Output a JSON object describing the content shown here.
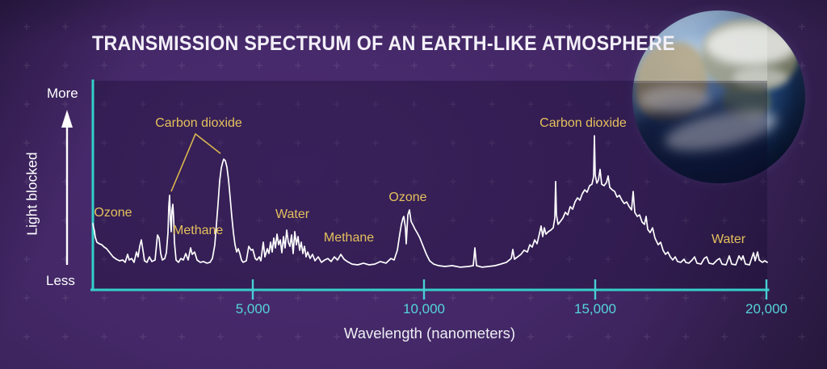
{
  "page": {
    "title": "TRANSMISSION SPECTRUM OF AN EARTH-LIKE ATMOSPHERE"
  },
  "colors": {
    "background_purple": "#432766",
    "plot_shade": "rgba(13,7,36,0.30)",
    "axis_teal": "#35cfc9",
    "tick_label_teal": "#55d4da",
    "annotation_gold": "#e5c05c",
    "curve_white": "#ffffff"
  },
  "chart_data": {
    "type": "line",
    "title": "TRANSMISSION SPECTRUM OF AN EARTH-LIKE ATMOSPHERE",
    "xlabel": "Wavelength (nanometers)",
    "ylabel": "Light blocked",
    "grid": false,
    "legend": "none",
    "y_axis": {
      "axis_label": "Light blocked",
      "top_label": "More",
      "bottom_label": "Less",
      "scale": "relative 0=Less 1=More"
    },
    "x_axis": {
      "unit": "nanometers",
      "range": [
        330,
        20020
      ],
      "ticks": [
        {
          "value": 5000,
          "label": "5,000"
        },
        {
          "value": 10000,
          "label": "10,000"
        },
        {
          "value": 15000,
          "label": "15,000"
        },
        {
          "value": 20000,
          "label": "20,000"
        }
      ]
    },
    "annotations": [
      {
        "text": "Ozone",
        "wl": 920,
        "blocked": 0.364
      },
      {
        "text": "Carbon dioxide",
        "wl": 3420,
        "blocked": 0.822
      },
      {
        "text": "Methane",
        "wl": 3400,
        "blocked": 0.273
      },
      {
        "text": "Water",
        "wl": 6156,
        "blocked": 0.355
      },
      {
        "text": "Methane",
        "wl": 7807,
        "blocked": 0.236
      },
      {
        "text": "Ozone",
        "wl": 9528,
        "blocked": 0.442
      },
      {
        "text": "Carbon dioxide",
        "wl": 14646,
        "blocked": 0.822
      },
      {
        "text": "Water",
        "wl": 18892,
        "blocked": 0.227
      }
    ],
    "leader_lines": [
      {
        "points": [
          [
            2618,
            0.475
          ],
          [
            3325,
            0.769
          ],
          [
            4057,
            0.669
          ]
        ]
      }
    ],
    "series": [
      {
        "name": "Earth-like atmosphere transmission spectrum",
        "points": [
          [
            330,
            0.31
          ],
          [
            377,
            0.27
          ],
          [
            400,
            0.24
          ],
          [
            448,
            0.215
          ],
          [
            519,
            0.207
          ],
          [
            590,
            0.202
          ],
          [
            660,
            0.19
          ],
          [
            731,
            0.182
          ],
          [
            825,
            0.161
          ],
          [
            920,
            0.14
          ],
          [
            1014,
            0.128
          ],
          [
            1109,
            0.12
          ],
          [
            1203,
            0.124
          ],
          [
            1274,
            0.112
          ],
          [
            1344,
            0.153
          ],
          [
            1392,
            0.124
          ],
          [
            1462,
            0.132
          ],
          [
            1533,
            0.112
          ],
          [
            1604,
            0.165
          ],
          [
            1651,
            0.14
          ],
          [
            1698,
            0.194
          ],
          [
            1745,
            0.227
          ],
          [
            1792,
            0.174
          ],
          [
            1840,
            0.12
          ],
          [
            1911,
            0.112
          ],
          [
            1981,
            0.14
          ],
          [
            2052,
            0.116
          ],
          [
            2146,
            0.124
          ],
          [
            2217,
            0.252
          ],
          [
            2264,
            0.236
          ],
          [
            2311,
            0.157
          ],
          [
            2358,
            0.124
          ],
          [
            2429,
            0.132
          ],
          [
            2476,
            0.161
          ],
          [
            2524,
            0.264
          ],
          [
            2547,
            0.397
          ],
          [
            2571,
            0.455
          ],
          [
            2594,
            0.33
          ],
          [
            2618,
            0.269
          ],
          [
            2642,
            0.38
          ],
          [
            2665,
            0.409
          ],
          [
            2689,
            0.339
          ],
          [
            2712,
            0.215
          ],
          [
            2760,
            0.124
          ],
          [
            2830,
            0.112
          ],
          [
            2901,
            0.132
          ],
          [
            2972,
            0.124
          ],
          [
            3043,
            0.157
          ],
          [
            3113,
            0.124
          ],
          [
            3184,
            0.186
          ],
          [
            3231,
            0.153
          ],
          [
            3302,
            0.165
          ],
          [
            3373,
            0.124
          ],
          [
            3467,
            0.112
          ],
          [
            3562,
            0.116
          ],
          [
            3656,
            0.108
          ],
          [
            3750,
            0.112
          ],
          [
            3821,
            0.132
          ],
          [
            3892,
            0.202
          ],
          [
            3939,
            0.306
          ],
          [
            3986,
            0.413
          ],
          [
            4033,
            0.529
          ],
          [
            4080,
            0.595
          ],
          [
            4128,
            0.628
          ],
          [
            4151,
            0.64
          ],
          [
            4198,
            0.632
          ],
          [
            4246,
            0.599
          ],
          [
            4293,
            0.533
          ],
          [
            4340,
            0.442
          ],
          [
            4387,
            0.347
          ],
          [
            4434,
            0.264
          ],
          [
            4481,
            0.202
          ],
          [
            4529,
            0.165
          ],
          [
            4576,
            0.182
          ],
          [
            4623,
            0.157
          ],
          [
            4670,
            0.124
          ],
          [
            4717,
            0.112
          ],
          [
            4812,
            0.12
          ],
          [
            4882,
            0.194
          ],
          [
            4953,
            0.174
          ],
          [
            5000,
            0.178
          ],
          [
            5071,
            0.132
          ],
          [
            5118,
            0.124
          ],
          [
            5189,
            0.14
          ],
          [
            5236,
            0.12
          ],
          [
            5307,
            0.215
          ],
          [
            5354,
            0.14
          ],
          [
            5425,
            0.182
          ],
          [
            5472,
            0.157
          ],
          [
            5519,
            0.215
          ],
          [
            5566,
            0.165
          ],
          [
            5613,
            0.236
          ],
          [
            5660,
            0.186
          ],
          [
            5708,
            0.256
          ],
          [
            5755,
            0.202
          ],
          [
            5802,
            0.227
          ],
          [
            5849,
            0.161
          ],
          [
            5896,
            0.244
          ],
          [
            5943,
            0.186
          ],
          [
            5991,
            0.277
          ],
          [
            6038,
            0.215
          ],
          [
            6085,
            0.194
          ],
          [
            6132,
            0.252
          ],
          [
            6179,
            0.157
          ],
          [
            6226,
            0.269
          ],
          [
            6274,
            0.202
          ],
          [
            6321,
            0.244
          ],
          [
            6368,
            0.174
          ],
          [
            6415,
            0.215
          ],
          [
            6462,
            0.157
          ],
          [
            6509,
            0.194
          ],
          [
            6557,
            0.14
          ],
          [
            6604,
            0.165
          ],
          [
            6675,
            0.132
          ],
          [
            6745,
            0.153
          ],
          [
            6816,
            0.12
          ],
          [
            6910,
            0.14
          ],
          [
            7005,
            0.112
          ],
          [
            7099,
            0.124
          ],
          [
            7193,
            0.132
          ],
          [
            7288,
            0.116
          ],
          [
            7382,
            0.14
          ],
          [
            7477,
            0.124
          ],
          [
            7571,
            0.153
          ],
          [
            7665,
            0.128
          ],
          [
            7760,
            0.116
          ],
          [
            7901,
            0.103
          ],
          [
            8066,
            0.099
          ],
          [
            8231,
            0.108
          ],
          [
            8396,
            0.099
          ],
          [
            8561,
            0.103
          ],
          [
            8726,
            0.116
          ],
          [
            8892,
            0.108
          ],
          [
            9033,
            0.132
          ],
          [
            9127,
            0.124
          ],
          [
            9222,
            0.174
          ],
          [
            9292,
            0.256
          ],
          [
            9340,
            0.306
          ],
          [
            9387,
            0.339
          ],
          [
            9410,
            0.347
          ],
          [
            9458,
            0.289
          ],
          [
            9481,
            0.207
          ],
          [
            9528,
            0.355
          ],
          [
            9575,
            0.38
          ],
          [
            9622,
            0.322
          ],
          [
            9670,
            0.306
          ],
          [
            9740,
            0.281
          ],
          [
            9811,
            0.26
          ],
          [
            9882,
            0.236
          ],
          [
            9976,
            0.194
          ],
          [
            10071,
            0.153
          ],
          [
            10165,
            0.12
          ],
          [
            10283,
            0.103
          ],
          [
            10425,
            0.095
          ],
          [
            10613,
            0.091
          ],
          [
            10825,
            0.095
          ],
          [
            11061,
            0.087
          ],
          [
            11297,
            0.091
          ],
          [
            11439,
            0.095
          ],
          [
            11486,
            0.186
          ],
          [
            11533,
            0.095
          ],
          [
            11698,
            0.087
          ],
          [
            11887,
            0.091
          ],
          [
            12076,
            0.095
          ],
          [
            12241,
            0.103
          ],
          [
            12406,
            0.112
          ],
          [
            12547,
            0.132
          ],
          [
            12594,
            0.178
          ],
          [
            12641,
            0.128
          ],
          [
            12736,
            0.14
          ],
          [
            12830,
            0.153
          ],
          [
            12924,
            0.174
          ],
          [
            13019,
            0.165
          ],
          [
            13090,
            0.202
          ],
          [
            13160,
            0.19
          ],
          [
            13231,
            0.227
          ],
          [
            13302,
            0.207
          ],
          [
            13373,
            0.26
          ],
          [
            13420,
            0.298
          ],
          [
            13467,
            0.244
          ],
          [
            13514,
            0.289
          ],
          [
            13561,
            0.256
          ],
          [
            13632,
            0.269
          ],
          [
            13703,
            0.277
          ],
          [
            13774,
            0.289
          ],
          [
            13821,
            0.339
          ],
          [
            13845,
            0.525
          ],
          [
            13868,
            0.355
          ],
          [
            13916,
            0.306
          ],
          [
            13986,
            0.322
          ],
          [
            14057,
            0.339
          ],
          [
            14127,
            0.368
          ],
          [
            14198,
            0.355
          ],
          [
            14269,
            0.397
          ],
          [
            14340,
            0.384
          ],
          [
            14410,
            0.421
          ],
          [
            14481,
            0.442
          ],
          [
            14552,
            0.43
          ],
          [
            14623,
            0.463
          ],
          [
            14693,
            0.483
          ],
          [
            14764,
            0.471
          ],
          [
            14835,
            0.504
          ],
          [
            14906,
            0.512
          ],
          [
            14953,
            0.55
          ],
          [
            14976,
            0.76
          ],
          [
            15000,
            0.56
          ],
          [
            15047,
            0.517
          ],
          [
            15094,
            0.533
          ],
          [
            15141,
            0.587
          ],
          [
            15188,
            0.512
          ],
          [
            15259,
            0.504
          ],
          [
            15330,
            0.521
          ],
          [
            15377,
            0.554
          ],
          [
            15424,
            0.496
          ],
          [
            15495,
            0.483
          ],
          [
            15566,
            0.475
          ],
          [
            15637,
            0.446
          ],
          [
            15708,
            0.455
          ],
          [
            15778,
            0.43
          ],
          [
            15849,
            0.413
          ],
          [
            15920,
            0.421
          ],
          [
            15991,
            0.397
          ],
          [
            16061,
            0.38
          ],
          [
            16108,
            0.475
          ],
          [
            16156,
            0.368
          ],
          [
            16226,
            0.347
          ],
          [
            16297,
            0.355
          ],
          [
            16368,
            0.318
          ],
          [
            16439,
            0.306
          ],
          [
            16486,
            0.347
          ],
          [
            16533,
            0.281
          ],
          [
            16604,
            0.264
          ],
          [
            16675,
            0.289
          ],
          [
            16746,
            0.236
          ],
          [
            16840,
            0.202
          ],
          [
            16911,
            0.215
          ],
          [
            16982,
            0.174
          ],
          [
            17052,
            0.153
          ],
          [
            17123,
            0.165
          ],
          [
            17194,
            0.14
          ],
          [
            17265,
            0.124
          ],
          [
            17335,
            0.14
          ],
          [
            17406,
            0.116
          ],
          [
            17500,
            0.112
          ],
          [
            17595,
            0.128
          ],
          [
            17642,
            0.112
          ],
          [
            17736,
            0.108
          ],
          [
            17830,
            0.124
          ],
          [
            17901,
            0.14
          ],
          [
            17972,
            0.108
          ],
          [
            18090,
            0.103
          ],
          [
            18184,
            0.132
          ],
          [
            18255,
            0.14
          ],
          [
            18325,
            0.108
          ],
          [
            18443,
            0.103
          ],
          [
            18561,
            0.124
          ],
          [
            18632,
            0.132
          ],
          [
            18703,
            0.103
          ],
          [
            18821,
            0.099
          ],
          [
            18915,
            0.145
          ],
          [
            18986,
            0.103
          ],
          [
            19104,
            0.099
          ],
          [
            19198,
            0.145
          ],
          [
            19269,
            0.124
          ],
          [
            19316,
            0.145
          ],
          [
            19387,
            0.103
          ],
          [
            19505,
            0.099
          ],
          [
            19623,
            0.161
          ],
          [
            19670,
            0.12
          ],
          [
            19740,
            0.165
          ],
          [
            19788,
            0.124
          ],
          [
            19882,
            0.112
          ],
          [
            19953,
            0.12
          ],
          [
            20023,
            0.112
          ]
        ]
      }
    ]
  }
}
